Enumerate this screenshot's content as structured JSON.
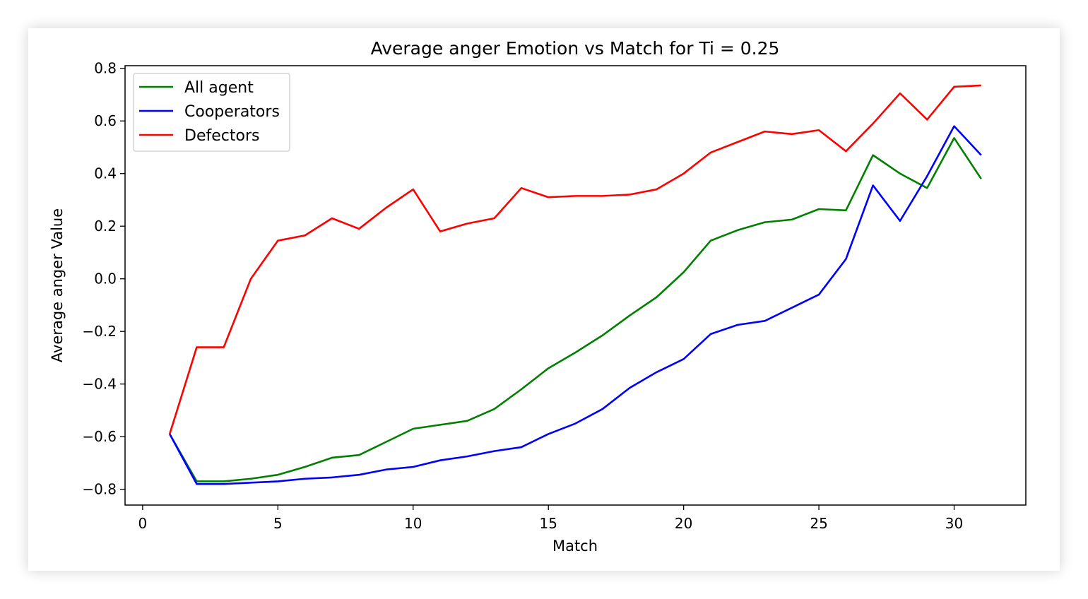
{
  "chart_data": {
    "type": "line",
    "title": "Average anger Emotion vs Match for Ti = 0.25",
    "xlabel": "Match",
    "ylabel": "Average anger Value",
    "xlim": [
      -0.65,
      32.65
    ],
    "ylim": [
      -0.86,
      0.81
    ],
    "xticks": [
      0,
      5,
      10,
      15,
      20,
      25,
      30
    ],
    "xtick_labels": [
      "0",
      "5",
      "10",
      "15",
      "20",
      "25",
      "30"
    ],
    "yticks": [
      -0.8,
      -0.6,
      -0.4,
      -0.2,
      0.0,
      0.2,
      0.4,
      0.6,
      0.8
    ],
    "ytick_labels": [
      "−0.8",
      "−0.6",
      "−0.4",
      "−0.2",
      "0.0",
      "0.2",
      "0.4",
      "0.6",
      "0.8"
    ],
    "grid": false,
    "legend_position": "upper-left",
    "x": [
      1,
      2,
      3,
      4,
      5,
      6,
      7,
      8,
      9,
      10,
      11,
      12,
      13,
      14,
      15,
      16,
      17,
      18,
      19,
      20,
      21,
      22,
      23,
      24,
      25,
      26,
      27,
      28,
      29,
      30,
      31
    ],
    "series": [
      {
        "name": "All agent",
        "color": "#008000",
        "values": [
          -0.59,
          -0.77,
          -0.77,
          -0.76,
          -0.745,
          -0.715,
          -0.68,
          -0.67,
          -0.62,
          -0.57,
          -0.555,
          -0.54,
          -0.495,
          -0.42,
          -0.34,
          -0.28,
          -0.215,
          -0.14,
          -0.07,
          0.025,
          0.145,
          0.185,
          0.215,
          0.225,
          0.265,
          0.26,
          0.47,
          0.4,
          0.345,
          0.535,
          0.38
        ]
      },
      {
        "name": "Cooperators",
        "color": "#0000ff",
        "values": [
          -0.59,
          -0.78,
          -0.78,
          -0.775,
          -0.77,
          -0.76,
          -0.755,
          -0.745,
          -0.725,
          -0.715,
          -0.69,
          -0.675,
          -0.655,
          -0.64,
          -0.59,
          -0.55,
          -0.495,
          -0.415,
          -0.355,
          -0.305,
          -0.21,
          -0.175,
          -0.16,
          -0.11,
          -0.06,
          0.075,
          0.355,
          0.22,
          0.39,
          0.58,
          0.47
        ]
      },
      {
        "name": "Defectors",
        "color": "#ff0000",
        "values": [
          -0.59,
          -0.26,
          -0.26,
          0.0,
          0.145,
          0.165,
          0.23,
          0.19,
          0.27,
          0.34,
          0.18,
          0.21,
          0.23,
          0.345,
          0.31,
          0.315,
          0.315,
          0.32,
          0.34,
          0.4,
          0.48,
          0.52,
          0.56,
          0.55,
          0.565,
          0.485,
          0.59,
          0.705,
          0.605,
          0.73,
          0.735
        ]
      }
    ]
  }
}
